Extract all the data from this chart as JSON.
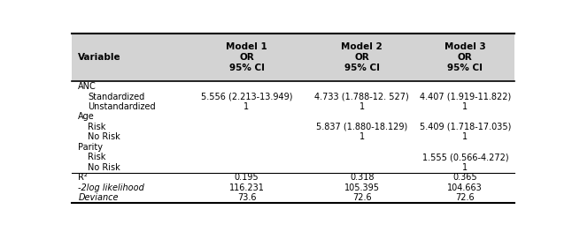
{
  "header_bg": "#d3d3d3",
  "body_bg": "#ffffff",
  "figsize": [
    6.46,
    2.63
  ],
  "dpi": 100,
  "col0_header": "Variable",
  "col1_header": "Model 1\nOR\n95% CI",
  "col2_header": "Model 2\nOR\n95% CI",
  "col3_header": "Model 3\nOR\n95% CI",
  "rows": [
    {
      "label": "ANC",
      "indent": 0,
      "italic": false,
      "col1": "",
      "col2": "",
      "col3": ""
    },
    {
      "label": "Standardized",
      "indent": 1,
      "italic": false,
      "col1": "5.556 (2.213-13.949)",
      "col2": "4.733 (1.788-12. 527)",
      "col3": "4.407 (1.919-11.822)"
    },
    {
      "label": "Unstandardized",
      "indent": 1,
      "italic": false,
      "col1": "1",
      "col2": "1",
      "col3": "1"
    },
    {
      "label": "Age",
      "indent": 0,
      "italic": false,
      "col1": "",
      "col2": "",
      "col3": ""
    },
    {
      "label": "Risk",
      "indent": 1,
      "italic": false,
      "col1": "",
      "col2": "5.837 (1.880-18.129)",
      "col3": "5.409 (1.718-17.035)"
    },
    {
      "label": "No Risk",
      "indent": 1,
      "italic": false,
      "col1": "",
      "col2": "1",
      "col3": "1"
    },
    {
      "label": "Parity",
      "indent": 0,
      "italic": false,
      "col1": "",
      "col2": "",
      "col3": ""
    },
    {
      "label": "Risk",
      "indent": 1,
      "italic": false,
      "col1": "",
      "col2": "",
      "col3": "1.555 (0.566-4.272)"
    },
    {
      "label": "No Risk",
      "indent": 1,
      "italic": false,
      "col1": "",
      "col2": "",
      "col3": "1"
    },
    {
      "label": "R²",
      "indent": 0,
      "italic": false,
      "col1": "0.195",
      "col2": "0.318",
      "col3": "0.365",
      "top_border": true
    },
    {
      "label": "-2log likelihood",
      "indent": 0,
      "italic": true,
      "col1": "116.231",
      "col2": "105.395",
      "col3": "104.663"
    },
    {
      "label": "Deviance",
      "indent": 0,
      "italic": true,
      "col1": "73.6",
      "col2": "72.6",
      "col3": "72.6"
    }
  ],
  "font_size_header": 7.5,
  "font_size_body": 7.0
}
